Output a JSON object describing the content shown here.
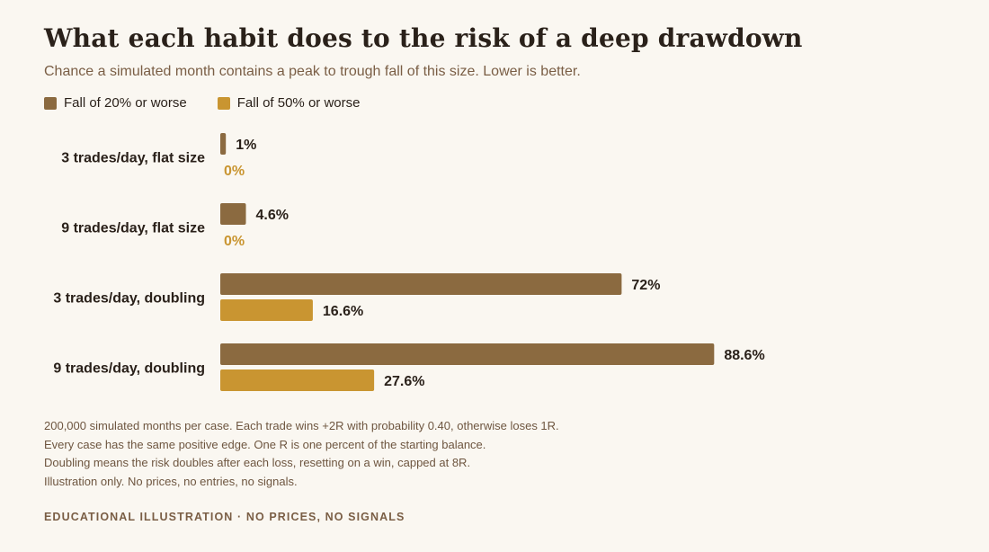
{
  "page": {
    "title": "What each habit does to the risk of a deep drawdown",
    "subtitle": "Chance a simulated month contains a peak to trough fall of this size. Lower is better.",
    "notes": [
      "200,000 simulated months per case. Each trade wins +2R with probability 0.40, otherwise loses 1R.",
      "Every case has the same positive edge. One R is one percent of the starting balance.",
      "Doubling means the risk doubles after each loss, resetting on a win, capped at 8R.",
      "Illustration only. No prices, no entries, no signals."
    ],
    "footer": "EDUCATIONAL ILLUSTRATION · NO PRICES, NO SIGNALS"
  },
  "colors": {
    "background": "#faf7f1",
    "series_20": "#8b6a40",
    "series_50": "#c99531",
    "text_dark": "#2a211a",
    "text_muted": "#7a5e45"
  },
  "chart_data": {
    "type": "bar",
    "orientation": "horizontal",
    "categories": [
      "3 trades/day, flat size",
      "9 trades/day, flat size",
      "3 trades/day, doubling",
      "9 trades/day, doubling"
    ],
    "series": [
      {
        "name": "Fall of 20% or worse",
        "values": [
          1,
          4.6,
          72,
          88.6
        ],
        "labels": [
          "1%",
          "4.6%",
          "72%",
          "88.6%"
        ]
      },
      {
        "name": "Fall of 50% or worse",
        "values": [
          0,
          0,
          16.6,
          27.6
        ],
        "labels": [
          "0%",
          "0%",
          "16.6%",
          "27.6%"
        ]
      }
    ],
    "xlim": [
      0,
      100
    ],
    "grid": false,
    "legend_position": "top-left"
  }
}
